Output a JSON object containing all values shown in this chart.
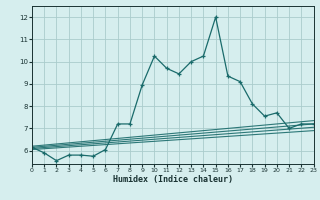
{
  "title": "",
  "xlabel": "Humidex (Indice chaleur)",
  "ylabel": "",
  "bg_color": "#d6eeee",
  "grid_color": "#aacccc",
  "line_color": "#1a6b6b",
  "x_min": 0,
  "x_max": 23,
  "y_min": 5.4,
  "y_max": 12.5,
  "yticks": [
    6,
    7,
    8,
    9,
    10,
    11,
    12
  ],
  "xticks": [
    0,
    1,
    2,
    3,
    4,
    5,
    6,
    7,
    8,
    9,
    10,
    11,
    12,
    13,
    14,
    15,
    16,
    17,
    18,
    19,
    20,
    21,
    22,
    23
  ],
  "main_line_x": [
    0,
    1,
    2,
    3,
    4,
    5,
    6,
    7,
    8,
    9,
    10,
    11,
    12,
    13,
    14,
    15,
    16,
    17,
    18,
    19,
    20,
    21,
    22,
    23
  ],
  "main_line_y": [
    6.15,
    5.9,
    5.55,
    5.8,
    5.8,
    5.75,
    6.05,
    7.2,
    7.2,
    8.95,
    10.25,
    9.7,
    9.45,
    10.0,
    10.25,
    12.0,
    9.35,
    9.1,
    8.1,
    7.55,
    7.7,
    7.0,
    7.2,
    7.2
  ],
  "linear_lines": [
    {
      "x": [
        0,
        23
      ],
      "y": [
        6.05,
        6.9
      ]
    },
    {
      "x": [
        0,
        23
      ],
      "y": [
        6.1,
        7.05
      ]
    },
    {
      "x": [
        0,
        23
      ],
      "y": [
        6.15,
        7.2
      ]
    },
    {
      "x": [
        0,
        23
      ],
      "y": [
        6.2,
        7.35
      ]
    }
  ]
}
